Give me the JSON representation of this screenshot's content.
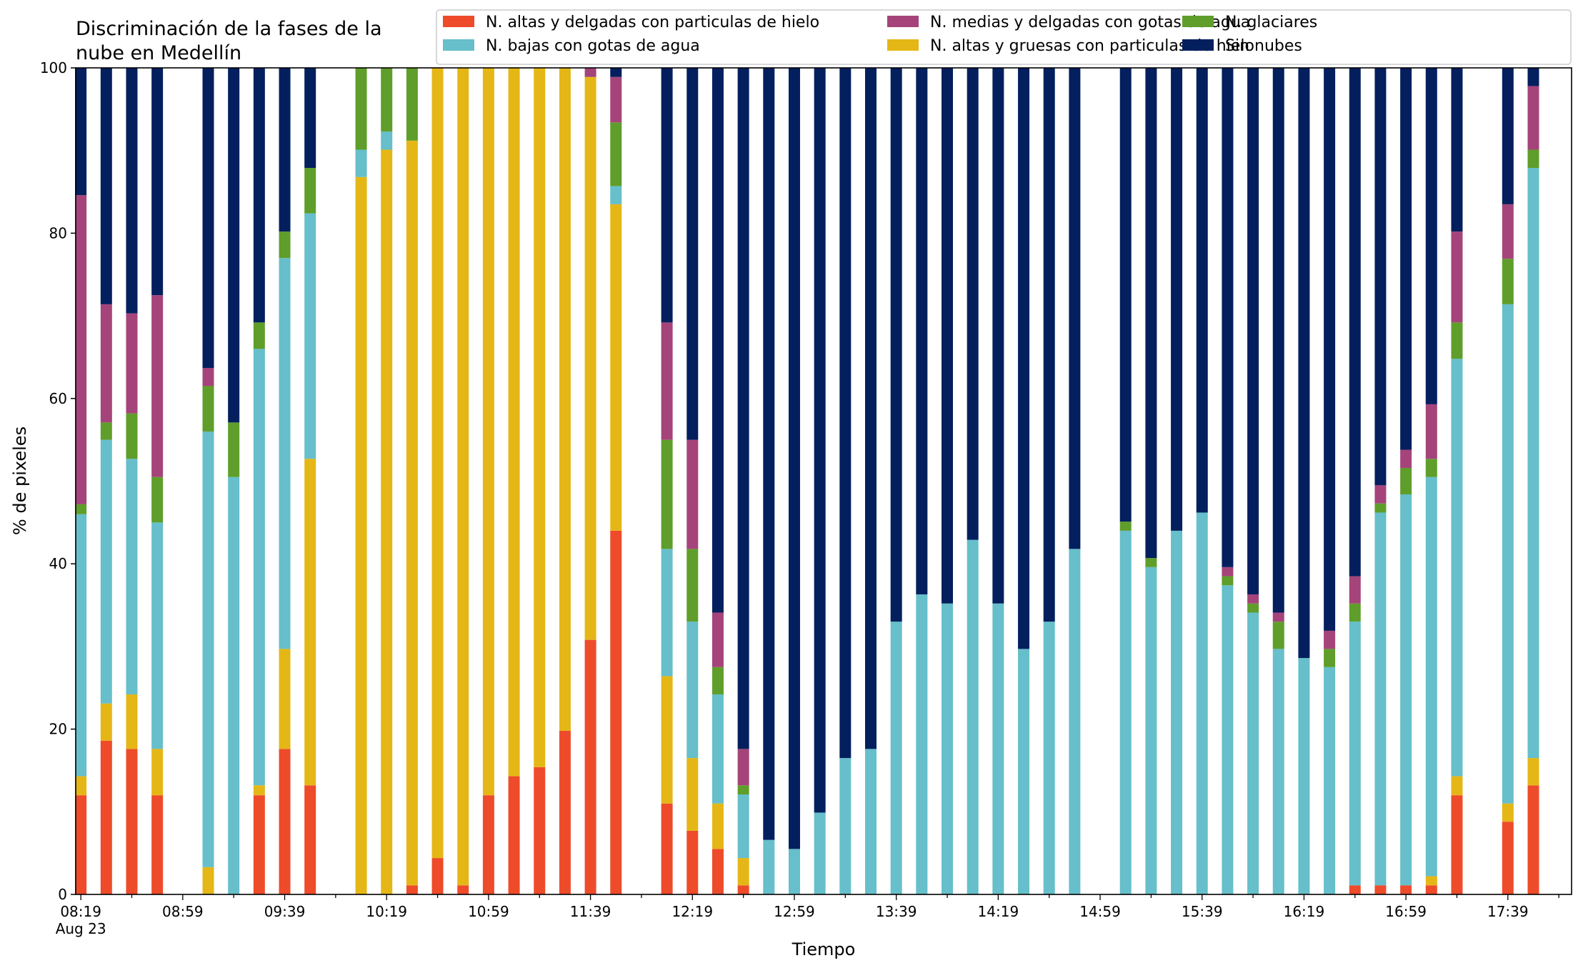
{
  "chart_data": {
    "type": "bar",
    "stacked": true,
    "title_lines": [
      "Discriminación de la fases de la",
      "nube en Medellín"
    ],
    "xlabel": "Tiempo",
    "ylabel": "% de pixeles",
    "ylim": [
      0,
      100
    ],
    "yticks": [
      "0",
      "20",
      "40",
      "60",
      "80",
      "100"
    ],
    "xticks": [
      {
        "minute": 0,
        "label": "08:19",
        "sublabel": "Aug 23"
      },
      {
        "minute": 40,
        "label": "08:59"
      },
      {
        "minute": 80,
        "label": "09:39"
      },
      {
        "minute": 120,
        "label": "10:19"
      },
      {
        "minute": 160,
        "label": "10:59"
      },
      {
        "minute": 200,
        "label": "11:39"
      },
      {
        "minute": 240,
        "label": "12:19"
      },
      {
        "minute": 280,
        "label": "12:59"
      },
      {
        "minute": 320,
        "label": "13:39"
      },
      {
        "minute": 360,
        "label": "14:19"
      },
      {
        "minute": 400,
        "label": "14:59"
      },
      {
        "minute": 440,
        "label": "15:39"
      },
      {
        "minute": 480,
        "label": "16:19"
      },
      {
        "minute": 520,
        "label": "16:59"
      },
      {
        "minute": 560,
        "label": "17:39"
      }
    ],
    "xrange_minutes": [
      -2,
      585
    ],
    "legend": {
      "position": "top-right",
      "columns": 3
    },
    "series": [
      {
        "name": "N. altas y delgadas con particulas de hielo",
        "color": "#EE4B2B"
      },
      {
        "name": "N. bajas con gotas de agua",
        "color": "#66BFCA"
      },
      {
        "name": "N. medias y delgadas con gotas de agua",
        "color": "#A5447A"
      },
      {
        "name": "N. altas y gruesas con particulas de hielo",
        "color": "#E5B716"
      },
      {
        "name": "N. glaciares",
        "color": "#5F9E2A"
      },
      {
        "name": "Sin nubes",
        "color": "#031F5E"
      }
    ],
    "stack_order": [
      0,
      3,
      1,
      4,
      2,
      5
    ],
    "bars": [
      {
        "minute": 0,
        "v": [
          12,
          14.3,
          46,
          47.2,
          84.6
        ]
      },
      {
        "minute": 10,
        "v": [
          18.6,
          23.1,
          55,
          57.1,
          71.4
        ]
      },
      {
        "minute": 20,
        "v": [
          17.6,
          24.2,
          52.7,
          58.2,
          70.3
        ]
      },
      {
        "minute": 30,
        "v": [
          12,
          17.6,
          45,
          50.5,
          72.5
        ]
      },
      {
        "minute": 50,
        "v": [
          0,
          3.3,
          56,
          61.5,
          63.7
        ]
      },
      {
        "minute": 60,
        "v": [
          0,
          0,
          50.5,
          57.1,
          57.1
        ]
      },
      {
        "minute": 70,
        "v": [
          12,
          13.2,
          66,
          69.2,
          69.2
        ]
      },
      {
        "minute": 80,
        "v": [
          17.6,
          29.7,
          77,
          80.2,
          80.2
        ]
      },
      {
        "minute": 90,
        "v": [
          13.2,
          52.7,
          82.4,
          87.9,
          87.9
        ]
      },
      {
        "minute": 110,
        "v": [
          0,
          86.8,
          90.1,
          100,
          100
        ]
      },
      {
        "minute": 120,
        "v": [
          0,
          90.1,
          92.3,
          100,
          100
        ]
      },
      {
        "minute": 130,
        "v": [
          1.1,
          91.2,
          91.2,
          100,
          100
        ]
      },
      {
        "minute": 140,
        "v": [
          4.4,
          100,
          100,
          100,
          100
        ]
      },
      {
        "minute": 150,
        "v": [
          1.1,
          100,
          100,
          100,
          100
        ]
      },
      {
        "minute": 160,
        "v": [
          12,
          100,
          100,
          100,
          100
        ]
      },
      {
        "minute": 170,
        "v": [
          14.3,
          100,
          100,
          100,
          100
        ]
      },
      {
        "minute": 180,
        "v": [
          15.4,
          100,
          100,
          100,
          100
        ]
      },
      {
        "minute": 190,
        "v": [
          19.8,
          100,
          100,
          100,
          100
        ]
      },
      {
        "minute": 200,
        "v": [
          30.8,
          98.9,
          98.9,
          98.9,
          100
        ]
      },
      {
        "minute": 210,
        "v": [
          44,
          83.5,
          85.7,
          93.4,
          98.9
        ]
      },
      {
        "minute": 230,
        "v": [
          11,
          26.4,
          41.8,
          55,
          69.2
        ]
      },
      {
        "minute": 240,
        "v": [
          7.7,
          16.5,
          33,
          41.8,
          55
        ]
      },
      {
        "minute": 250,
        "v": [
          5.5,
          11,
          24.2,
          27.5,
          34.1
        ]
      },
      {
        "minute": 260,
        "v": [
          1.1,
          4.4,
          12.1,
          13.2,
          17.6
        ]
      },
      {
        "minute": 270,
        "v": [
          0,
          0,
          6.6,
          6.6,
          6.6
        ]
      },
      {
        "minute": 280,
        "v": [
          0,
          0,
          5.5,
          5.5,
          5.5
        ]
      },
      {
        "minute": 290,
        "v": [
          0,
          0,
          9.9,
          9.9,
          9.9
        ]
      },
      {
        "minute": 300,
        "v": [
          0,
          0,
          16.5,
          16.5,
          16.5
        ]
      },
      {
        "minute": 310,
        "v": [
          0,
          0,
          17.6,
          17.6,
          17.6
        ]
      },
      {
        "minute": 320,
        "v": [
          0,
          0,
          33,
          33,
          33
        ]
      },
      {
        "minute": 330,
        "v": [
          0,
          0,
          36.3,
          36.3,
          36.3
        ]
      },
      {
        "minute": 340,
        "v": [
          0,
          0,
          35.2,
          35.2,
          35.2
        ]
      },
      {
        "minute": 350,
        "v": [
          0,
          0,
          42.9,
          42.9,
          42.9
        ]
      },
      {
        "minute": 360,
        "v": [
          0,
          0,
          35.2,
          35.2,
          35.2
        ]
      },
      {
        "minute": 370,
        "v": [
          0,
          0,
          29.7,
          29.7,
          29.7
        ]
      },
      {
        "minute": 380,
        "v": [
          0,
          0,
          33,
          33,
          33
        ]
      },
      {
        "minute": 390,
        "v": [
          0,
          0,
          41.8,
          41.8,
          41.8
        ]
      },
      {
        "minute": 410,
        "v": [
          0,
          0,
          44,
          45.1,
          45.1
        ]
      },
      {
        "minute": 420,
        "v": [
          0,
          0,
          39.6,
          40.7,
          40.7
        ]
      },
      {
        "minute": 430,
        "v": [
          0,
          0,
          44,
          44,
          44
        ]
      },
      {
        "minute": 440,
        "v": [
          0,
          0,
          46.2,
          46.2,
          46.2
        ]
      },
      {
        "minute": 450,
        "v": [
          0,
          0,
          37.4,
          38.5,
          39.6
        ]
      },
      {
        "minute": 460,
        "v": [
          0,
          0,
          34.1,
          35.2,
          36.3
        ]
      },
      {
        "minute": 470,
        "v": [
          0,
          0,
          29.7,
          33,
          34.1
        ]
      },
      {
        "minute": 480,
        "v": [
          0,
          0,
          28.6,
          28.6,
          28.6
        ]
      },
      {
        "minute": 490,
        "v": [
          0,
          0,
          27.5,
          29.7,
          31.9
        ]
      },
      {
        "minute": 500,
        "v": [
          1.1,
          1.1,
          33,
          35.2,
          38.5
        ]
      },
      {
        "minute": 510,
        "v": [
          1.1,
          1.1,
          46.2,
          47.3,
          49.5
        ]
      },
      {
        "minute": 520,
        "v": [
          1.1,
          1.1,
          48.4,
          51.6,
          53.8
        ]
      },
      {
        "minute": 530,
        "v": [
          1.1,
          2.2,
          50.5,
          52.7,
          59.3
        ]
      },
      {
        "minute": 540,
        "v": [
          12,
          14.3,
          64.8,
          69.2,
          80.2
        ]
      },
      {
        "minute": 560,
        "v": [
          8.8,
          11,
          71.4,
          76.9,
          83.5
        ]
      },
      {
        "minute": 570,
        "v": [
          13.2,
          16.5,
          87.9,
          90.1,
          97.8
        ]
      }
    ]
  }
}
